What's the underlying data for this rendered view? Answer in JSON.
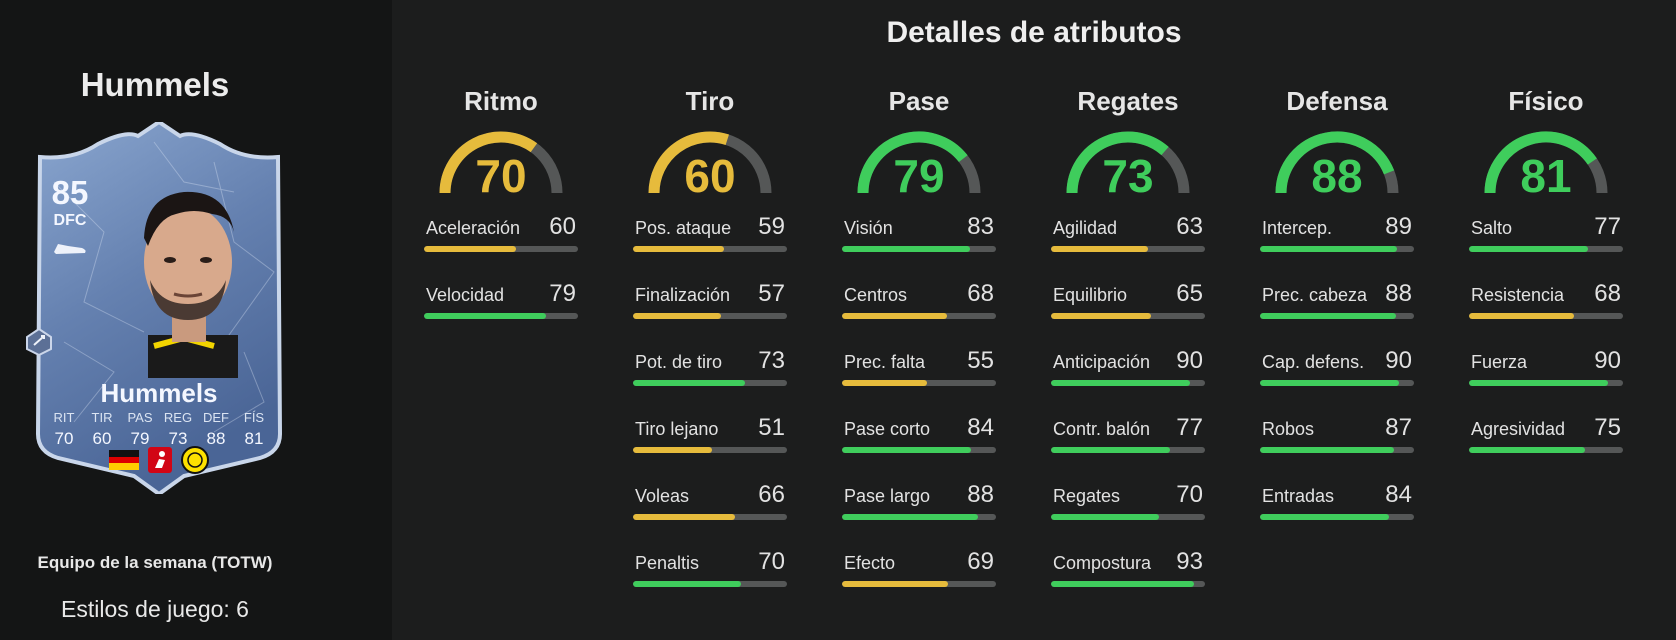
{
  "player": {
    "name": "Hummels",
    "rating": "85",
    "position": "DFC",
    "card_name": "Hummels",
    "card_stats": [
      {
        "label": "RIT",
        "value": "70"
      },
      {
        "label": "TIR",
        "value": "60"
      },
      {
        "label": "PAS",
        "value": "79"
      },
      {
        "label": "REG",
        "value": "73"
      },
      {
        "label": "DEF",
        "value": "88"
      },
      {
        "label": "FÍS",
        "value": "81"
      }
    ],
    "badges": [
      "germany-flag",
      "bundesliga-logo",
      "bvb-crest"
    ],
    "card_type": "Equipo de la semana (TOTW)",
    "playstyles": "Estilos de juego: 6"
  },
  "section_title": "Detalles de atributos",
  "colors": {
    "yellow": "#e6bb3c",
    "green": "#3fcd5c",
    "bar_track": "#555757",
    "card_blue": "#6f8cb8"
  },
  "categories": [
    {
      "name": "Ritmo",
      "value": 70,
      "display": "70",
      "color": "yellow",
      "stats": [
        {
          "label": "Aceleración",
          "value": 60
        },
        {
          "label": "Velocidad",
          "value": 79
        }
      ]
    },
    {
      "name": "Tiro",
      "value": 60,
      "display": "60",
      "color": "yellow",
      "stats": [
        {
          "label": "Pos. ataque",
          "value": 59
        },
        {
          "label": "Finalización",
          "value": 57
        },
        {
          "label": "Pot. de tiro",
          "value": 73
        },
        {
          "label": "Tiro lejano",
          "value": 51
        },
        {
          "label": "Voleas",
          "value": 66
        },
        {
          "label": "Penaltis",
          "value": 70
        }
      ]
    },
    {
      "name": "Pase",
      "value": 79,
      "display": "79",
      "color": "green",
      "stats": [
        {
          "label": "Visión",
          "value": 83
        },
        {
          "label": "Centros",
          "value": 68
        },
        {
          "label": "Prec. falta",
          "value": 55
        },
        {
          "label": "Pase corto",
          "value": 84
        },
        {
          "label": "Pase largo",
          "value": 88
        },
        {
          "label": "Efecto",
          "value": 69
        }
      ]
    },
    {
      "name": "Regates",
      "value": 73,
      "display": "73",
      "color": "green",
      "stats": [
        {
          "label": "Agilidad",
          "value": 63
        },
        {
          "label": "Equilibrio",
          "value": 65
        },
        {
          "label": "Anticipación",
          "value": 90
        },
        {
          "label": "Contr. balón",
          "value": 77
        },
        {
          "label": "Regates",
          "value": 70
        },
        {
          "label": "Compostura",
          "value": 93
        }
      ]
    },
    {
      "name": "Defensa",
      "value": 88,
      "display": "88",
      "color": "green",
      "stats": [
        {
          "label": "Intercep.",
          "value": 89
        },
        {
          "label": "Prec. cabeza",
          "value": 88
        },
        {
          "label": "Cap. defens.",
          "value": 90
        },
        {
          "label": "Robos",
          "value": 87
        },
        {
          "label": "Entradas",
          "value": 84
        }
      ]
    },
    {
      "name": "Físico",
      "value": 81,
      "display": "81",
      "color": "green",
      "stats": [
        {
          "label": "Salto",
          "value": 77
        },
        {
          "label": "Resistencia",
          "value": 68
        },
        {
          "label": "Fuerza",
          "value": 90
        },
        {
          "label": "Agresividad",
          "value": 75
        }
      ]
    }
  ]
}
